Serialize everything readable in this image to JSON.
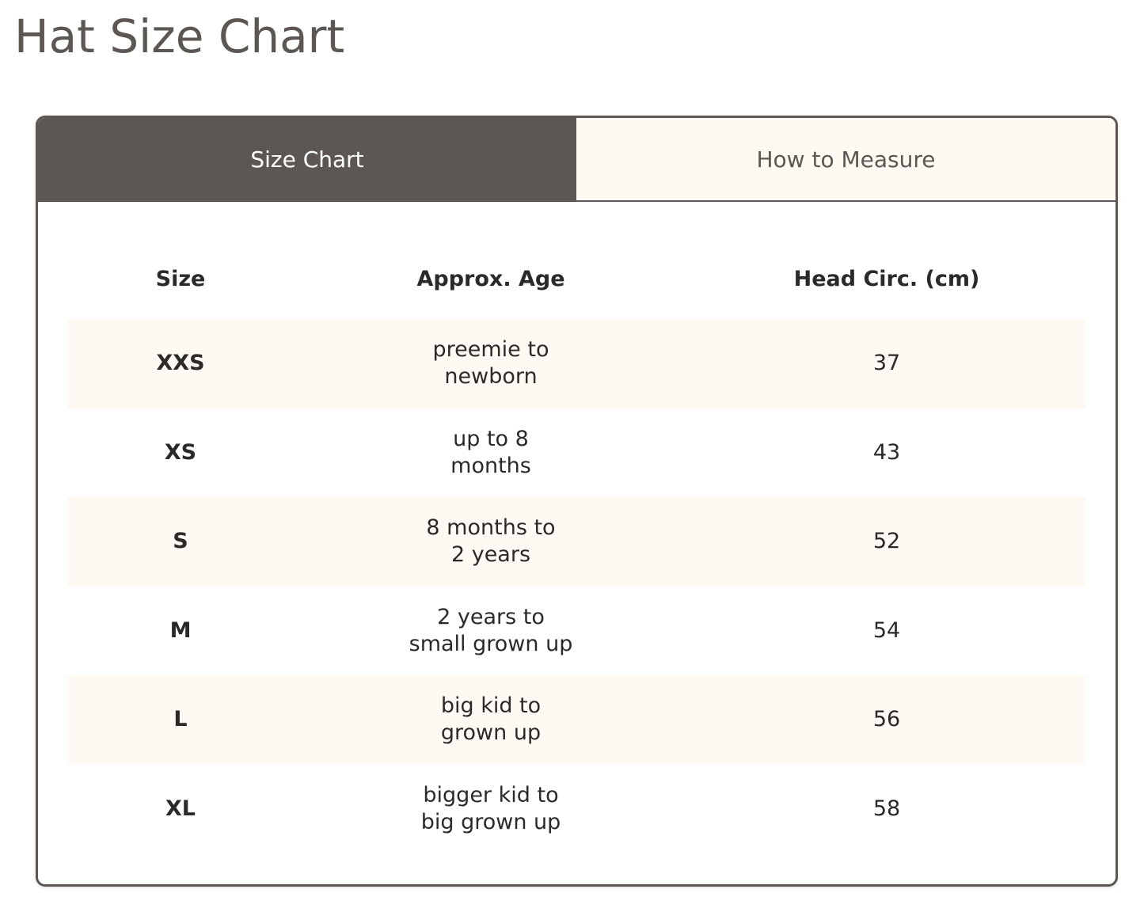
{
  "page_title": "Hat Size Chart",
  "tabs": [
    {
      "label": "Size Chart",
      "active": true
    },
    {
      "label": "How to Measure",
      "active": false
    }
  ],
  "table": {
    "headers": [
      "Size",
      "Approx. Age",
      "Head Circ. (cm)"
    ],
    "rows": [
      {
        "size": "XXS",
        "age_line1": "preemie to",
        "age_line2": "newborn",
        "circ": "37"
      },
      {
        "size": "XS",
        "age_line1": "up to 8",
        "age_line2": "months",
        "circ": "43"
      },
      {
        "size": "S",
        "age_line1": "8 months to",
        "age_line2": "2 years",
        "circ": "52"
      },
      {
        "size": "M",
        "age_line1": "2 years to",
        "age_line2": "small grown up",
        "circ": "54"
      },
      {
        "size": "L",
        "age_line1": "big kid to",
        "age_line2": "grown up",
        "circ": "56"
      },
      {
        "size": "XL",
        "age_line1": "bigger kid to",
        "age_line2": "big grown up",
        "circ": "58"
      }
    ]
  },
  "colors": {
    "accent": "#5c5753",
    "row_alt": "#fff9f4"
  }
}
